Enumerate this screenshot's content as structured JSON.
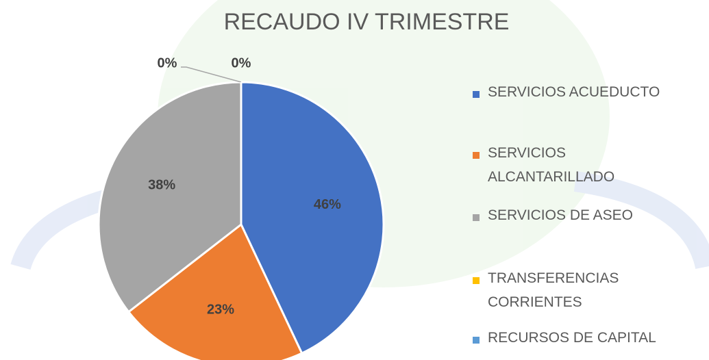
{
  "chart_data": {
    "type": "pie",
    "title": "RECAUDO IV TRIMESTRE",
    "categories": [
      "SERVICIOS ACUEDUCTO",
      "SERVICIOS ALCANTARILLADO",
      "SERVICIOS DE ASEO",
      "TRANSFERENCIAS CORRIENTES",
      "RECURSOS DE CAPITAL"
    ],
    "values": [
      46,
      23,
      38,
      0,
      0
    ],
    "value_labels": [
      "46%",
      "23%",
      "38%",
      "0%",
      "0%"
    ],
    "colors": [
      "#4472c4",
      "#ed7d31",
      "#a5a5a5",
      "#ffc000",
      "#5b9bd5"
    ],
    "legend": "right"
  }
}
